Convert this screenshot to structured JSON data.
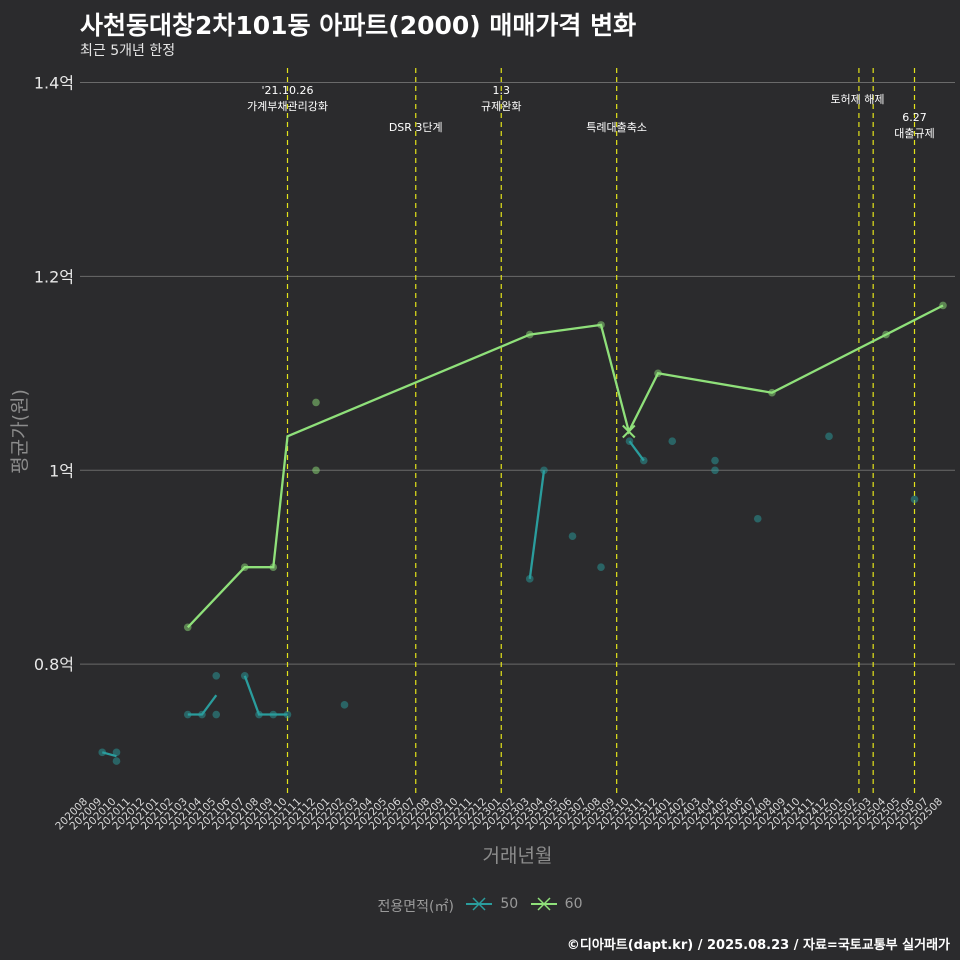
{
  "title": "사천동대창2차101동 아파트(2000) 매매가격 변화",
  "subtitle": "최근 5개년 한정",
  "footer": "©디아파트(dapt.kr) / 2025.08.23 / 자료=국토교통부 실거래가",
  "legend": {
    "title": "전용면적(㎡)",
    "items": [
      {
        "label": "50",
        "color": "#2a9d9d"
      },
      {
        "label": "60",
        "color": "#8fe07a"
      }
    ]
  },
  "chart_data": {
    "type": "line",
    "title": "사천동대창2차101동 아파트(2000) 매매가격 변화",
    "subtitle": "최근 5개년 한정",
    "xlabel": "거래년월",
    "ylabel": "평균가(원)",
    "ylim": [
      0.665,
      1.415
    ],
    "y_ticks": [
      {
        "value": 0.8,
        "label": "0.8억"
      },
      {
        "value": 1.0,
        "label": "1억"
      },
      {
        "value": 1.2,
        "label": "1.2억"
      },
      {
        "value": 1.4,
        "label": "1.4억"
      }
    ],
    "x_categories": [
      "202008",
      "202009",
      "202010",
      "202011",
      "202012",
      "202101",
      "202102",
      "202103",
      "202104",
      "202105",
      "202106",
      "202107",
      "202108",
      "202109",
      "202110",
      "202111",
      "202112",
      "202201",
      "202202",
      "202203",
      "202204",
      "202205",
      "202206",
      "202207",
      "202208",
      "202209",
      "202210",
      "202211",
      "202212",
      "202301",
      "202302",
      "202303",
      "202304",
      "202305",
      "202306",
      "202307",
      "202308",
      "202309",
      "202310",
      "202311",
      "202312",
      "202401",
      "202402",
      "202403",
      "202404",
      "202405",
      "202406",
      "202407",
      "202408",
      "202409",
      "202410",
      "202411",
      "202412",
      "202501",
      "202502",
      "202503",
      "202504",
      "202505",
      "202506",
      "202507",
      "202508"
    ],
    "grid": true,
    "legend_position": "bottom",
    "events": [
      {
        "x": 14.0,
        "label": "'21.10.26\n가계부채관리강화",
        "label_row": 0
      },
      {
        "x": 23.0,
        "label": "DSR 3단계",
        "label_row": 2
      },
      {
        "x": 29.0,
        "label": "1.3\n규제완화",
        "label_row": 0
      },
      {
        "x": 37.1,
        "label": "특례대출축소",
        "label_row": 2
      },
      {
        "x": 54.1,
        "label": "",
        "label_row": 1
      },
      {
        "x": 55.1,
        "label": "토허제 해제",
        "label_row": 1,
        "label_x": 54.0
      },
      {
        "x": 58.0,
        "label": "6.27\n대출규제",
        "label_row": 3
      }
    ],
    "series": [
      {
        "name": "50",
        "color": "#2a9d9d",
        "line_segments": [
          [
            [
              1,
              0.709
            ],
            [
              2,
              0.705
            ]
          ],
          [
            [
              7,
              0.748
            ],
            [
              8,
              0.748
            ],
            [
              9,
              0.768
            ]
          ],
          [
            [
              11,
              0.788
            ],
            [
              12,
              0.748
            ],
            [
              13,
              0.748
            ],
            [
              14,
              0.748
            ]
          ],
          [
            [
              31,
              0.888
            ],
            [
              32,
              1.0
            ]
          ],
          [
            [
              38,
              1.03
            ],
            [
              39,
              1.01
            ]
          ]
        ],
        "points": [
          [
            1,
            0.709
          ],
          [
            2,
            0.709
          ],
          [
            2,
            0.7
          ],
          [
            7,
            0.748
          ],
          [
            8,
            0.748
          ],
          [
            9,
            0.788
          ],
          [
            9,
            0.748
          ],
          [
            11,
            0.788
          ],
          [
            12,
            0.748
          ],
          [
            13,
            0.748
          ],
          [
            14,
            0.748
          ],
          [
            18,
            0.758
          ],
          [
            31,
            0.888
          ],
          [
            32,
            1.0
          ],
          [
            34,
            0.932
          ],
          [
            36,
            0.9
          ],
          [
            38,
            1.03
          ],
          [
            39,
            1.01
          ],
          [
            41,
            1.03
          ],
          [
            44,
            1.01
          ],
          [
            44,
            1.0
          ],
          [
            47,
            0.95
          ],
          [
            52,
            1.035
          ],
          [
            58,
            0.97
          ]
        ]
      },
      {
        "name": "60",
        "color": "#8fe07a",
        "line": [
          [
            7,
            0.838
          ],
          [
            11,
            0.9
          ],
          [
            13,
            0.9
          ],
          [
            14,
            1.035
          ],
          [
            31,
            1.14
          ],
          [
            36,
            1.15
          ],
          [
            37.95,
            1.04
          ],
          [
            40,
            1.1
          ],
          [
            48,
            1.08
          ],
          [
            56,
            1.14
          ],
          [
            60,
            1.17
          ]
        ],
        "points": [
          [
            7,
            0.838
          ],
          [
            11,
            0.9
          ],
          [
            13,
            0.9
          ],
          [
            16,
            1.07
          ],
          [
            16,
            1.0
          ],
          [
            31,
            1.14
          ],
          [
            36,
            1.15
          ],
          [
            40,
            1.1
          ],
          [
            48,
            1.08
          ],
          [
            56,
            1.14
          ],
          [
            60,
            1.17
          ]
        ],
        "cross_points": [
          [
            37.95,
            1.04
          ]
        ]
      }
    ]
  }
}
